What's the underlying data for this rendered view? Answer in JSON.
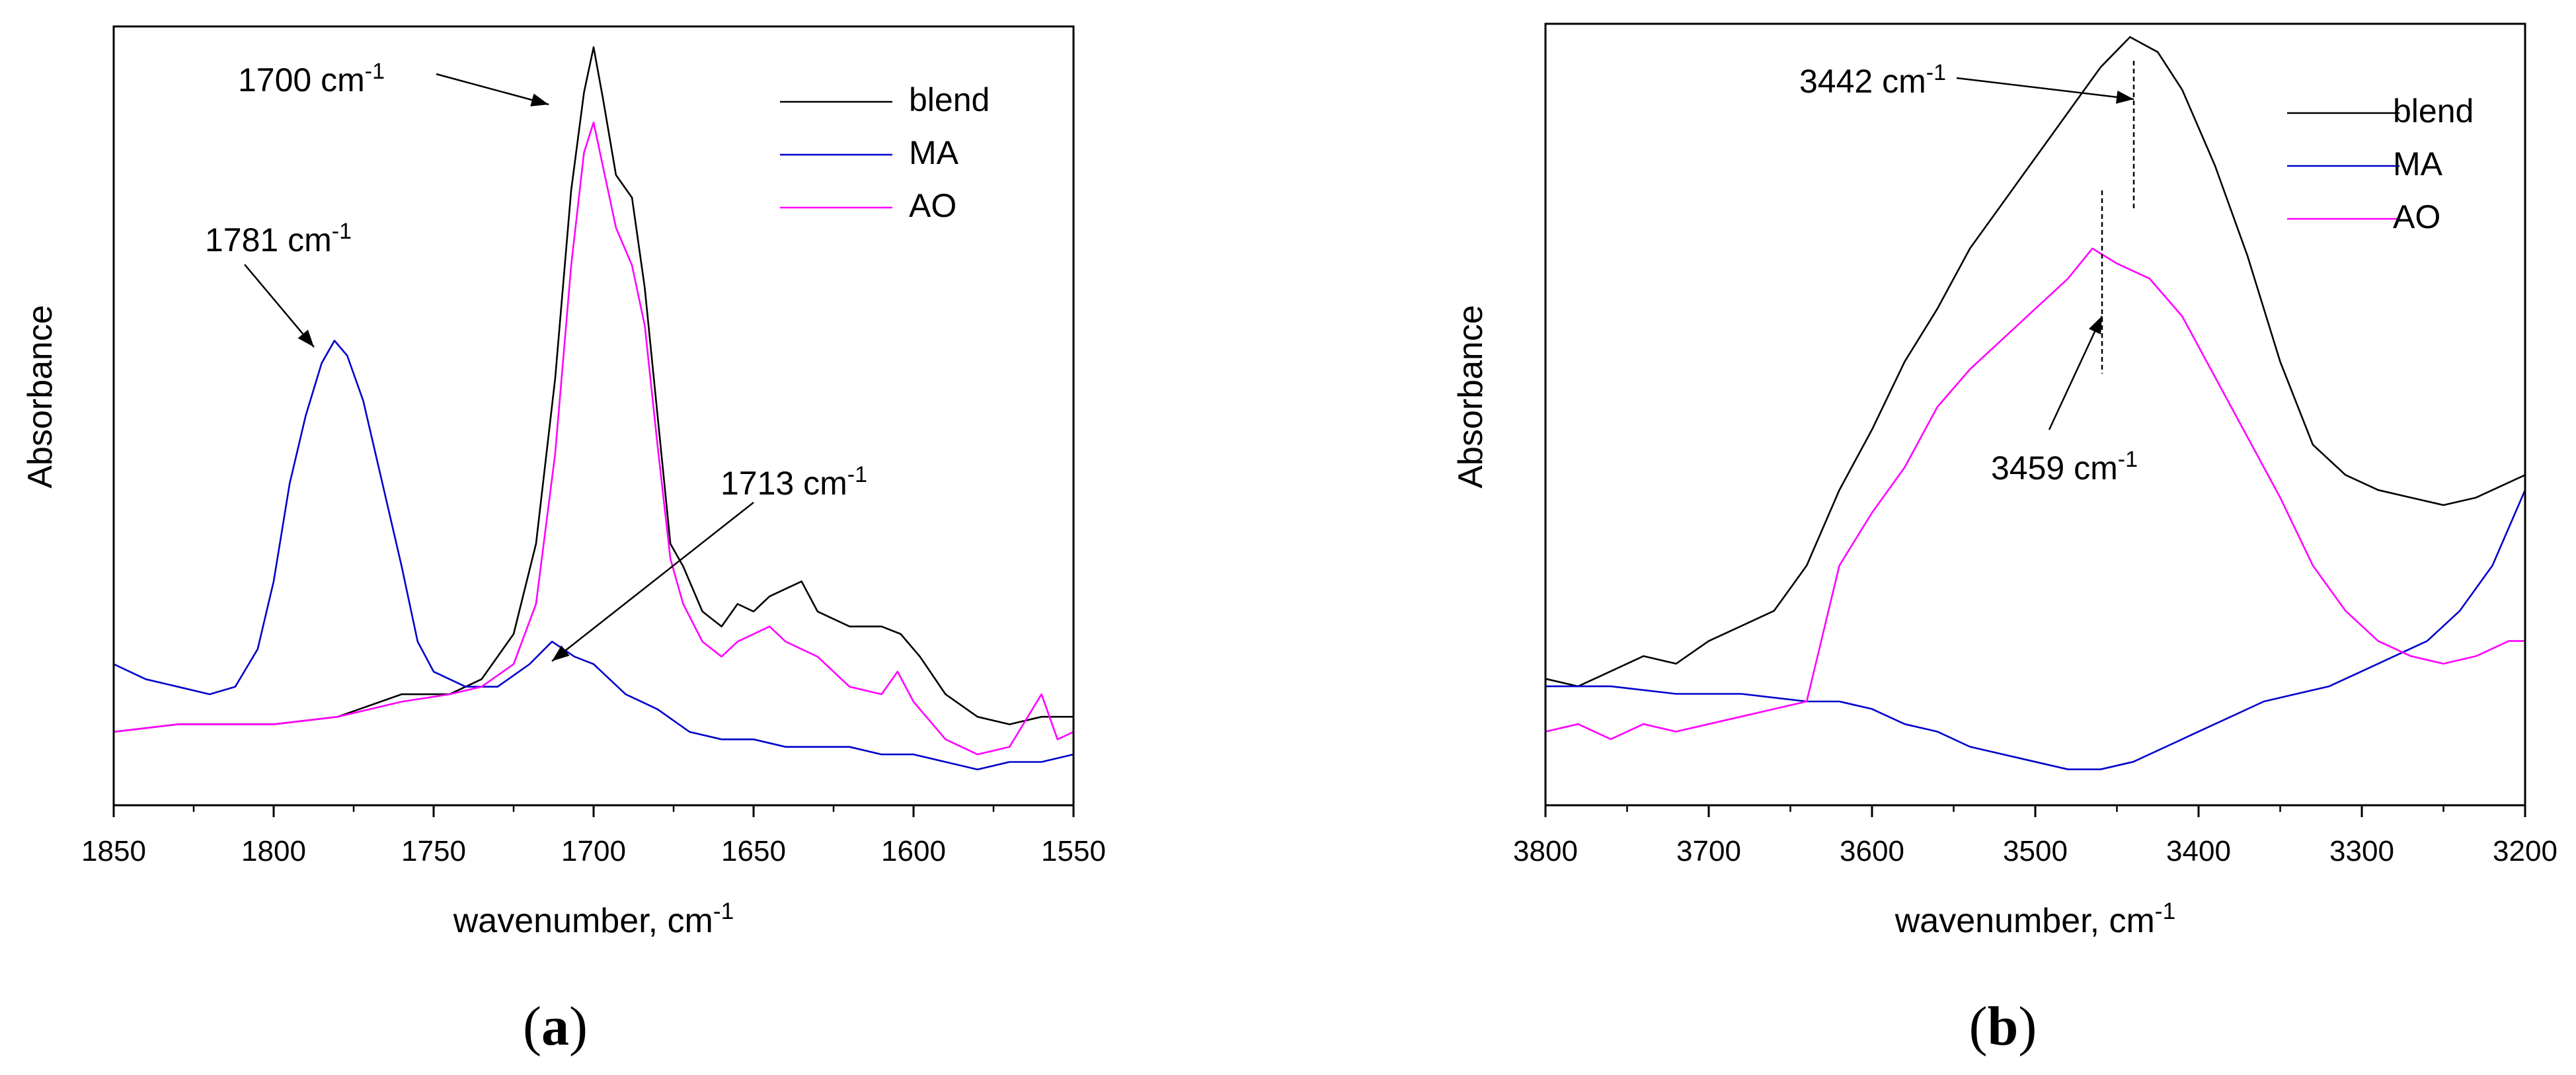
{
  "chart_data": [
    {
      "panel": "(a)",
      "type": "line",
      "ylabel": "Absorbance",
      "xlabel": "wavenumber, cm",
      "xlabel_sup": "-1",
      "xlim": [
        1850,
        1550
      ],
      "xticks": [
        1850,
        1800,
        1750,
        1700,
        1650,
        1600,
        1550
      ],
      "yticks_labeled": false,
      "legend": [
        "blend",
        "MA",
        "AO"
      ],
      "legend_position": "top-right",
      "annotations": [
        {
          "text": "1700 cm",
          "sup": "-1",
          "x": 1700
        },
        {
          "text": "1781 cm",
          "sup": "-1",
          "x": 1781
        },
        {
          "text": "1713 cm",
          "sup": "-1",
          "x": 1713
        }
      ],
      "series": [
        {
          "name": "blend",
          "color": "#000000",
          "points": [
            [
              1850,
              0.08
            ],
            [
              1830,
              0.09
            ],
            [
              1800,
              0.09
            ],
            [
              1780,
              0.1
            ],
            [
              1760,
              0.13
            ],
            [
              1745,
              0.13
            ],
            [
              1735,
              0.15
            ],
            [
              1725,
              0.21
            ],
            [
              1718,
              0.33
            ],
            [
              1712,
              0.55
            ],
            [
              1707,
              0.8
            ],
            [
              1703,
              0.93
            ],
            [
              1700,
              0.99
            ],
            [
              1697,
              0.92
            ],
            [
              1693,
              0.82
            ],
            [
              1688,
              0.79
            ],
            [
              1684,
              0.67
            ],
            [
              1680,
              0.5
            ],
            [
              1676,
              0.33
            ],
            [
              1672,
              0.3
            ],
            [
              1666,
              0.24
            ],
            [
              1660,
              0.22
            ],
            [
              1655,
              0.25
            ],
            [
              1650,
              0.24
            ],
            [
              1645,
              0.26
            ],
            [
              1640,
              0.27
            ],
            [
              1635,
              0.28
            ],
            [
              1630,
              0.24
            ],
            [
              1620,
              0.22
            ],
            [
              1610,
              0.22
            ],
            [
              1604,
              0.21
            ],
            [
              1598,
              0.18
            ],
            [
              1590,
              0.13
            ],
            [
              1580,
              0.1
            ],
            [
              1570,
              0.09
            ],
            [
              1560,
              0.1
            ],
            [
              1550,
              0.1
            ]
          ]
        },
        {
          "name": "MA",
          "color": "#0000cc",
          "points": [
            [
              1850,
              0.17
            ],
            [
              1840,
              0.15
            ],
            [
              1830,
              0.14
            ],
            [
              1820,
              0.13
            ],
            [
              1812,
              0.14
            ],
            [
              1805,
              0.19
            ],
            [
              1800,
              0.28
            ],
            [
              1795,
              0.41
            ],
            [
              1790,
              0.5
            ],
            [
              1785,
              0.57
            ],
            [
              1781,
              0.6
            ],
            [
              1777,
              0.58
            ],
            [
              1772,
              0.52
            ],
            [
              1766,
              0.41
            ],
            [
              1760,
              0.3
            ],
            [
              1755,
              0.2
            ],
            [
              1750,
              0.16
            ],
            [
              1740,
              0.14
            ],
            [
              1730,
              0.14
            ],
            [
              1720,
              0.17
            ],
            [
              1713,
              0.2
            ],
            [
              1706,
              0.18
            ],
            [
              1700,
              0.17
            ],
            [
              1690,
              0.13
            ],
            [
              1680,
              0.11
            ],
            [
              1670,
              0.08
            ],
            [
              1660,
              0.07
            ],
            [
              1650,
              0.07
            ],
            [
              1640,
              0.06
            ],
            [
              1630,
              0.06
            ],
            [
              1620,
              0.06
            ],
            [
              1610,
              0.05
            ],
            [
              1600,
              0.05
            ],
            [
              1590,
              0.04
            ],
            [
              1580,
              0.03
            ],
            [
              1570,
              0.04
            ],
            [
              1560,
              0.04
            ],
            [
              1550,
              0.05
            ]
          ]
        },
        {
          "name": "AO",
          "color": "#ff00ff",
          "points": [
            [
              1850,
              0.08
            ],
            [
              1830,
              0.09
            ],
            [
              1800,
              0.09
            ],
            [
              1780,
              0.1
            ],
            [
              1760,
              0.12
            ],
            [
              1745,
              0.13
            ],
            [
              1735,
              0.14
            ],
            [
              1725,
              0.17
            ],
            [
              1718,
              0.25
            ],
            [
              1712,
              0.45
            ],
            [
              1707,
              0.7
            ],
            [
              1703,
              0.85
            ],
            [
              1700,
              0.89
            ],
            [
              1697,
              0.83
            ],
            [
              1693,
              0.75
            ],
            [
              1688,
              0.7
            ],
            [
              1684,
              0.62
            ],
            [
              1680,
              0.46
            ],
            [
              1676,
              0.31
            ],
            [
              1672,
              0.25
            ],
            [
              1666,
              0.2
            ],
            [
              1660,
              0.18
            ],
            [
              1655,
              0.2
            ],
            [
              1650,
              0.21
            ],
            [
              1645,
              0.22
            ],
            [
              1640,
              0.2
            ],
            [
              1630,
              0.18
            ],
            [
              1620,
              0.14
            ],
            [
              1610,
              0.13
            ],
            [
              1605,
              0.16
            ],
            [
              1600,
              0.12
            ],
            [
              1590,
              0.07
            ],
            [
              1580,
              0.05
            ],
            [
              1570,
              0.06
            ],
            [
              1560,
              0.13
            ],
            [
              1555,
              0.07
            ],
            [
              1550,
              0.08
            ]
          ]
        }
      ]
    },
    {
      "panel": "(b)",
      "type": "line",
      "ylabel": "Absorbance",
      "xlabel": "wavenumber, cm",
      "xlabel_sup": "-1",
      "xlim": [
        3800,
        3200
      ],
      "xticks": [
        3800,
        3700,
        3600,
        3500,
        3400,
        3300,
        3200
      ],
      "yticks_labeled": false,
      "legend": [
        "blend",
        "MA",
        "AO"
      ],
      "legend_position": "top-right",
      "annotations": [
        {
          "text": "3442 cm",
          "sup": "-1",
          "x": 3442
        },
        {
          "text": "3459 cm",
          "sup": "-1",
          "x": 3459
        }
      ],
      "series": [
        {
          "name": "blend",
          "color": "#000000",
          "points": [
            [
              3800,
              0.15
            ],
            [
              3780,
              0.14
            ],
            [
              3760,
              0.16
            ],
            [
              3740,
              0.18
            ],
            [
              3720,
              0.17
            ],
            [
              3700,
              0.2
            ],
            [
              3680,
              0.22
            ],
            [
              3660,
              0.24
            ],
            [
              3640,
              0.3
            ],
            [
              3620,
              0.4
            ],
            [
              3600,
              0.48
            ],
            [
              3580,
              0.57
            ],
            [
              3560,
              0.64
            ],
            [
              3540,
              0.72
            ],
            [
              3520,
              0.78
            ],
            [
              3500,
              0.84
            ],
            [
              3480,
              0.9
            ],
            [
              3460,
              0.96
            ],
            [
              3442,
              1.0
            ],
            [
              3425,
              0.98
            ],
            [
              3410,
              0.93
            ],
            [
              3390,
              0.83
            ],
            [
              3370,
              0.71
            ],
            [
              3350,
              0.57
            ],
            [
              3330,
              0.46
            ],
            [
              3310,
              0.42
            ],
            [
              3290,
              0.4
            ],
            [
              3270,
              0.39
            ],
            [
              3250,
              0.38
            ],
            [
              3230,
              0.39
            ],
            [
              3210,
              0.41
            ],
            [
              3200,
              0.42
            ]
          ]
        },
        {
          "name": "MA",
          "color": "#0000cc",
          "points": [
            [
              3800,
              0.14
            ],
            [
              3760,
              0.14
            ],
            [
              3720,
              0.13
            ],
            [
              3680,
              0.13
            ],
            [
              3640,
              0.12
            ],
            [
              3620,
              0.12
            ],
            [
              3600,
              0.11
            ],
            [
              3580,
              0.09
            ],
            [
              3560,
              0.08
            ],
            [
              3540,
              0.06
            ],
            [
              3520,
              0.05
            ],
            [
              3500,
              0.04
            ],
            [
              3480,
              0.03
            ],
            [
              3460,
              0.03
            ],
            [
              3440,
              0.04
            ],
            [
              3420,
              0.06
            ],
            [
              3400,
              0.08
            ],
            [
              3380,
              0.1
            ],
            [
              3360,
              0.12
            ],
            [
              3340,
              0.13
            ],
            [
              3320,
              0.14
            ],
            [
              3300,
              0.16
            ],
            [
              3280,
              0.18
            ],
            [
              3260,
              0.2
            ],
            [
              3240,
              0.24
            ],
            [
              3220,
              0.3
            ],
            [
              3210,
              0.35
            ],
            [
              3200,
              0.4
            ]
          ]
        },
        {
          "name": "AO",
          "color": "#ff00ff",
          "points": [
            [
              3800,
              0.08
            ],
            [
              3780,
              0.09
            ],
            [
              3760,
              0.07
            ],
            [
              3740,
              0.09
            ],
            [
              3720,
              0.08
            ],
            [
              3700,
              0.09
            ],
            [
              3680,
              0.1
            ],
            [
              3660,
              0.11
            ],
            [
              3640,
              0.12
            ],
            [
              3620,
              0.3
            ],
            [
              3600,
              0.37
            ],
            [
              3580,
              0.43
            ],
            [
              3560,
              0.51
            ],
            [
              3540,
              0.56
            ],
            [
              3520,
              0.6
            ],
            [
              3500,
              0.64
            ],
            [
              3480,
              0.68
            ],
            [
              3465,
              0.72
            ],
            [
              3450,
              0.7
            ],
            [
              3430,
              0.68
            ],
            [
              3410,
              0.63
            ],
            [
              3390,
              0.55
            ],
            [
              3370,
              0.47
            ],
            [
              3350,
              0.39
            ],
            [
              3330,
              0.3
            ],
            [
              3310,
              0.24
            ],
            [
              3290,
              0.2
            ],
            [
              3270,
              0.18
            ],
            [
              3250,
              0.17
            ],
            [
              3230,
              0.18
            ],
            [
              3210,
              0.2
            ],
            [
              3200,
              0.2
            ]
          ]
        }
      ]
    }
  ],
  "panel_labels": [
    "(a)",
    "(b)"
  ]
}
